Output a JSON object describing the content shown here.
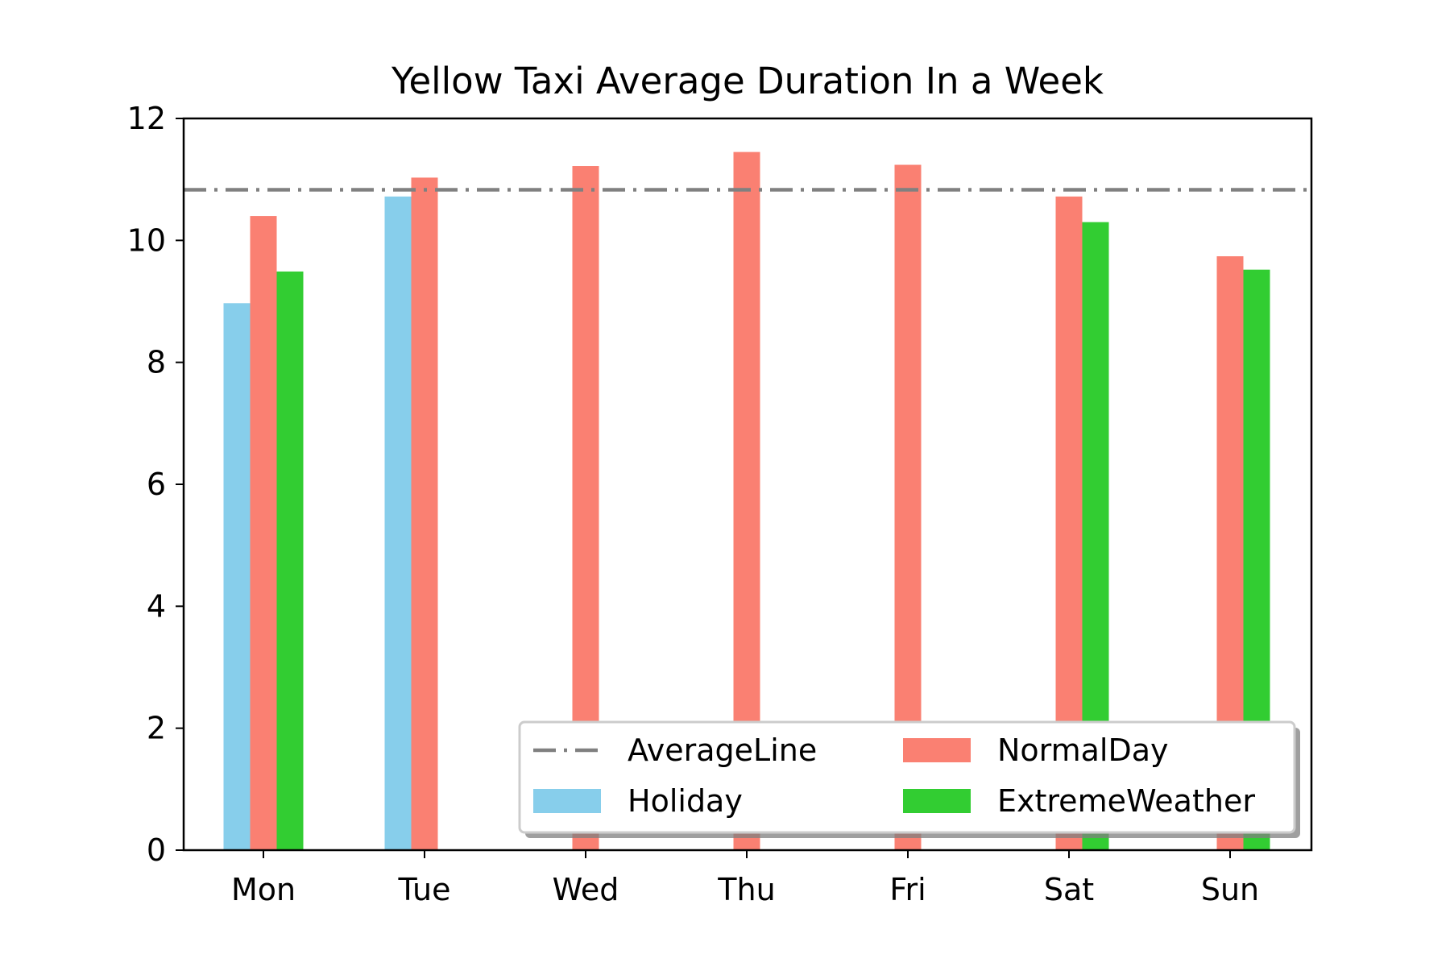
{
  "chart_data": {
    "type": "bar",
    "title": "Yellow Taxi Average Duration In a Week",
    "xlabel": "",
    "ylabel": "",
    "ylim": [
      0,
      12
    ],
    "yticks": [
      0,
      2,
      4,
      6,
      8,
      10,
      12
    ],
    "categories": [
      "Mon",
      "Tue",
      "Wed",
      "Thu",
      "Fri",
      "Sat",
      "Sun"
    ],
    "series": [
      {
        "name": "Holiday",
        "color": "#87ceeb",
        "values": [
          8.97,
          10.72,
          null,
          null,
          null,
          null,
          null
        ]
      },
      {
        "name": "NormalDay",
        "color": "#fa8072",
        "values": [
          10.4,
          11.03,
          11.22,
          11.45,
          11.24,
          10.72,
          9.74
        ]
      },
      {
        "name": "ExtremeWeather",
        "color": "#32cd32",
        "values": [
          9.49,
          null,
          null,
          null,
          null,
          10.3,
          9.52
        ]
      }
    ],
    "reference_line": {
      "name": "AverageLine",
      "value": 10.83,
      "color": "#808080",
      "style": "dash-dot"
    },
    "legend": {
      "placement": "lower-right",
      "columns": 2,
      "entries": [
        "AverageLine",
        "NormalDay",
        "Holiday",
        "ExtremeWeather"
      ]
    },
    "grid": false
  }
}
